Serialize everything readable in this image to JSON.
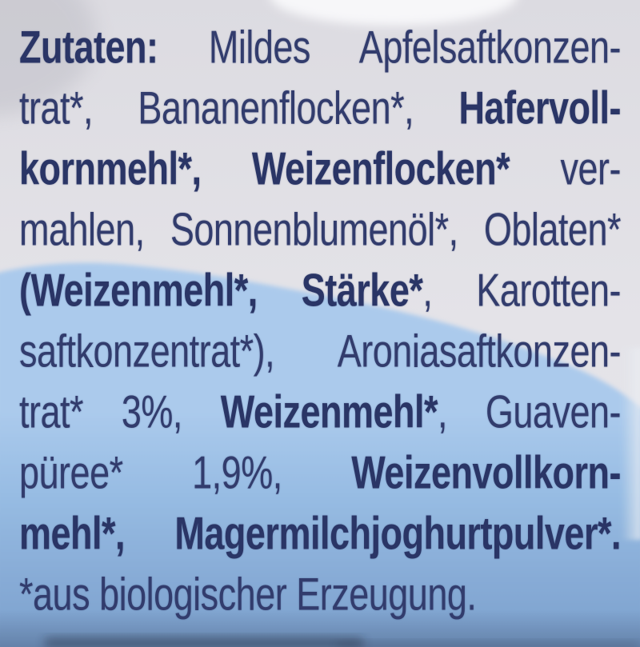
{
  "label": {
    "lines": [
      {
        "justify": true,
        "segments": [
          {
            "t": "Zutaten:",
            "b": true
          },
          {
            "t": " Mildes Apfelsaftkonzen-",
            "b": false
          }
        ]
      },
      {
        "justify": true,
        "segments": [
          {
            "t": "trat*, Bananenflocken*, ",
            "b": false
          },
          {
            "t": "Hafervoll-",
            "b": true
          }
        ]
      },
      {
        "justify": true,
        "segments": [
          {
            "t": "kornmehl*,",
            "b": true
          },
          {
            "t": " ",
            "b": false
          },
          {
            "t": "Weizenflocken*",
            "b": true
          },
          {
            "t": " ver-",
            "b": false
          }
        ]
      },
      {
        "justify": true,
        "segments": [
          {
            "t": "mahlen, Sonnenblumenöl*, Oblaten*",
            "b": false
          }
        ]
      },
      {
        "justify": true,
        "segments": [
          {
            "t": "(Weizenmehl*,",
            "b": true
          },
          {
            "t": " ",
            "b": false
          },
          {
            "t": "Stärke*",
            "b": true
          },
          {
            "t": ", Karotten-",
            "b": false
          }
        ]
      },
      {
        "justify": true,
        "segments": [
          {
            "t": "saftkonzentrat*), Aroniasaftkonzen-",
            "b": false
          }
        ]
      },
      {
        "justify": true,
        "segments": [
          {
            "t": "trat* 3%, ",
            "b": false
          },
          {
            "t": "Weizenmehl*",
            "b": true
          },
          {
            "t": ", Guaven-",
            "b": false
          }
        ]
      },
      {
        "justify": true,
        "segments": [
          {
            "t": "püree* 1,9%, ",
            "b": false
          },
          {
            "t": "Weizenvollkorn-",
            "b": true
          }
        ]
      },
      {
        "justify": true,
        "segments": [
          {
            "t": "mehl*, Magermilchjoghurtpulver*.",
            "b": true
          }
        ]
      },
      {
        "justify": false,
        "segments": [
          {
            "t": "*aus biologischer Erzeugung.",
            "b": false
          }
        ]
      }
    ]
  },
  "colors": {
    "text_regular": "#323c6d",
    "text_bold": "#2a3566",
    "package_white": "#e2e1e6",
    "band_blue_top": "#abcaec",
    "band_blue_bottom": "#7ba0cc"
  }
}
